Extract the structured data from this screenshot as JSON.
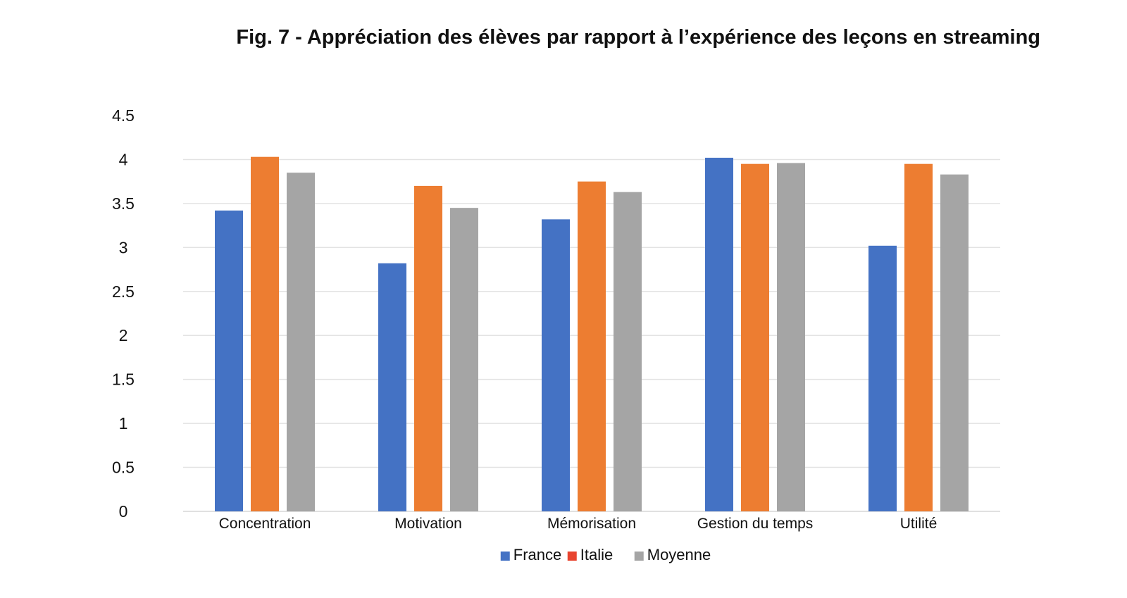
{
  "chart_data": {
    "type": "bar",
    "title": "Fig. 7 - Appréciation des élèves par rapport à l’expérience des leçons en streaming",
    "categories": [
      "Concentration",
      "Motivation",
      "Mémorisation",
      "Gestion du temps",
      "Utilité"
    ],
    "series": [
      {
        "name": "France",
        "color": "#4472C4",
        "values": [
          3.42,
          2.82,
          3.32,
          4.02,
          3.02
        ]
      },
      {
        "name": "Italie",
        "color": "#ED7D31",
        "values": [
          4.03,
          3.7,
          3.75,
          3.95,
          3.95
        ]
      },
      {
        "name": "Moyenne",
        "color": "#A5A5A5",
        "values": [
          3.85,
          3.45,
          3.63,
          3.96,
          3.83
        ]
      }
    ],
    "legend_markers": {
      "France": "#4472C4",
      "Italie": "#E8442F",
      "Moyenne": "#A5A5A5"
    },
    "ylim": [
      0,
      4.5
    ],
    "yticks": [
      "0",
      "0.5",
      "1",
      "1.5",
      "2",
      "2.5",
      "3",
      "3.5",
      "4",
      "4.5"
    ],
    "grid": true,
    "legend_position": "bottom",
    "xlabel": "",
    "ylabel": ""
  }
}
